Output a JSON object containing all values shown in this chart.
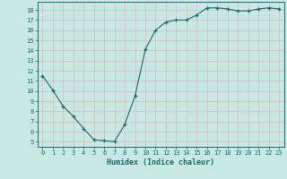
{
  "x": [
    0,
    1,
    2,
    3,
    4,
    5,
    6,
    7,
    8,
    9,
    10,
    11,
    12,
    13,
    14,
    15,
    16,
    17,
    18,
    19,
    20,
    21,
    22,
    23
  ],
  "y": [
    11.5,
    10.1,
    8.5,
    7.5,
    6.3,
    5.2,
    5.1,
    5.0,
    6.7,
    9.5,
    14.1,
    16.0,
    16.8,
    17.0,
    17.0,
    17.5,
    18.2,
    18.2,
    18.1,
    17.9,
    17.9,
    18.1,
    18.2,
    18.1
  ],
  "xlabel": "Humidex (Indice chaleur)",
  "xlim": [
    -0.5,
    23.5
  ],
  "ylim": [
    4.5,
    18.8
  ],
  "yticks": [
    5,
    6,
    7,
    8,
    9,
    10,
    11,
    12,
    13,
    14,
    15,
    16,
    17,
    18
  ],
  "xticks": [
    0,
    1,
    2,
    3,
    4,
    5,
    6,
    7,
    8,
    9,
    10,
    11,
    12,
    13,
    14,
    15,
    16,
    17,
    18,
    19,
    20,
    21,
    22,
    23
  ],
  "bg_color": "#c8e8e4",
  "line_color": "#1a6b6b",
  "grid_color": "#d8b8b8",
  "label_color": "#1a6b6b",
  "tick_color": "#1a6b6b",
  "spine_color": "#1a6b6b"
}
